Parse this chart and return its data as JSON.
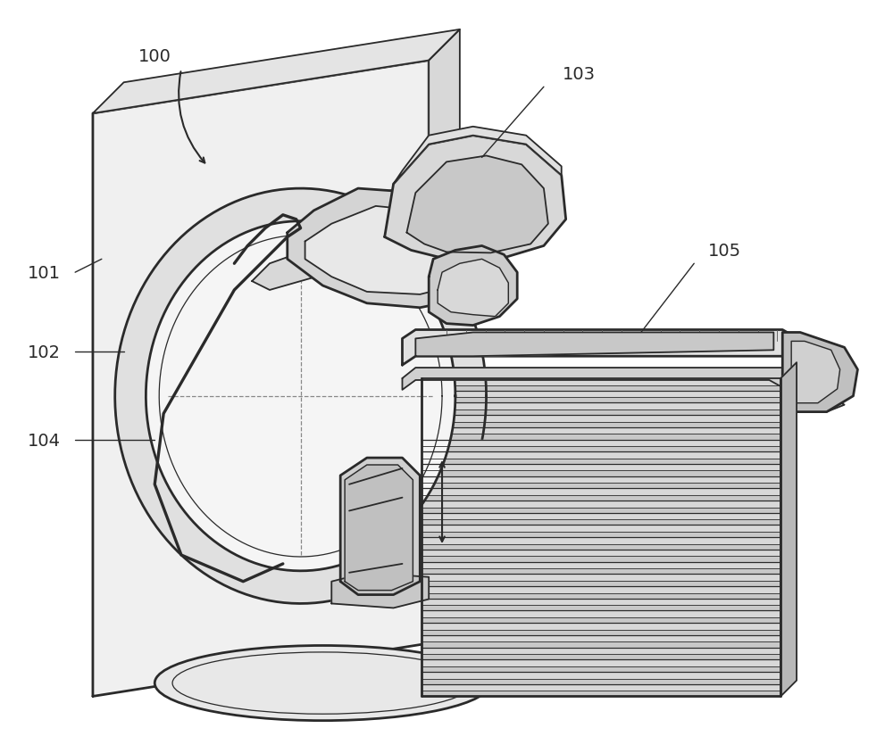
{
  "bg_color": "#ffffff",
  "line_color": "#2a2a2a",
  "fill_wall": "#f0f0f0",
  "fill_wall_side": "#d8d8d8",
  "fill_wall_top": "#e4e4e4",
  "fill_gantry": "#e8e8e8",
  "fill_gantry_dark": "#c8c8c8",
  "fill_ring": "#e0e0e0",
  "fill_hole": "#f8f8f8",
  "fill_tube": "#d4d4d4",
  "fill_table": "#e0e0e0",
  "fill_bellows_a": "#c8c8c8",
  "fill_bellows_b": "#d8d8d8",
  "fill_base": "#e8e8e8",
  "lw": 1.3,
  "lw2": 2.0,
  "label_fs": 14
}
